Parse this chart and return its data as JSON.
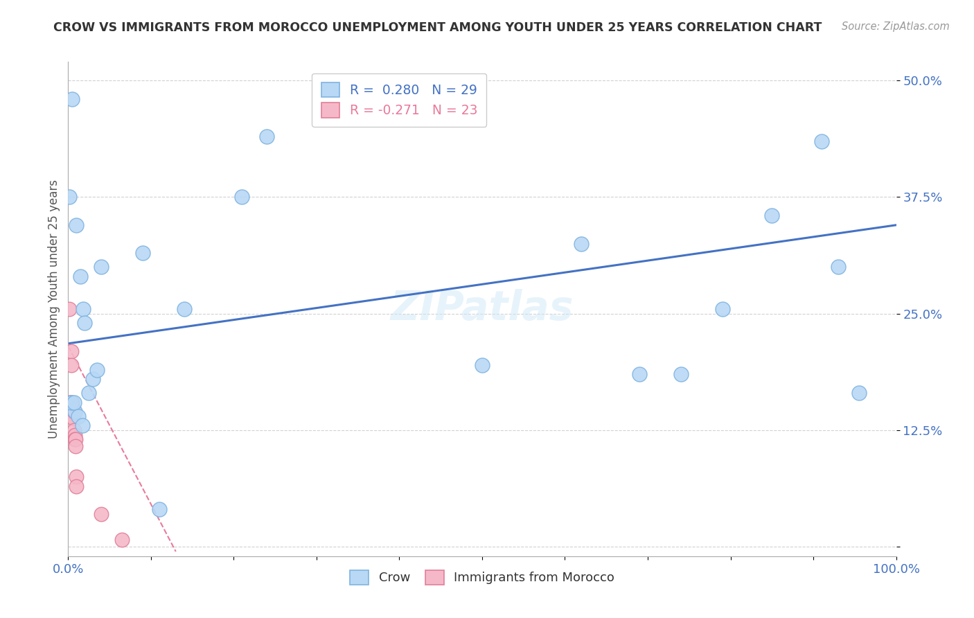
{
  "title": "CROW VS IMMIGRANTS FROM MOROCCO UNEMPLOYMENT AMONG YOUTH UNDER 25 YEARS CORRELATION CHART",
  "source": "Source: ZipAtlas.com",
  "ylabel": "Unemployment Among Youth under 25 years",
  "yticks": [
    0.0,
    0.125,
    0.25,
    0.375,
    0.5
  ],
  "ytick_labels": [
    "",
    "12.5%",
    "25.0%",
    "37.5%",
    "50.0%"
  ],
  "legend_label1": "Crow",
  "legend_label2": "Immigrants from Morocco",
  "legend_r1": "R =  0.280",
  "legend_n1": "N = 29",
  "legend_r2": "R = -0.271",
  "legend_n2": "N = 23",
  "crow_color": "#b8d8f5",
  "crow_edge_color": "#7fb3e0",
  "morocco_color": "#f5b8c8",
  "morocco_edge_color": "#e07f9a",
  "trend_blue": "#4472c4",
  "trend_pink": "#e87a9a",
  "background": "#ffffff",
  "crow_x": [
    0.001,
    0.005,
    0.008,
    0.01,
    0.015,
    0.018,
    0.02,
    0.025,
    0.03,
    0.04,
    0.09,
    0.14,
    0.21,
    0.24,
    0.5,
    0.62,
    0.69,
    0.74,
    0.79,
    0.85,
    0.91,
    0.93,
    0.955,
    0.004,
    0.007,
    0.012,
    0.017,
    0.035,
    0.11
  ],
  "crow_y": [
    0.375,
    0.48,
    0.145,
    0.345,
    0.29,
    0.255,
    0.24,
    0.165,
    0.18,
    0.3,
    0.315,
    0.255,
    0.375,
    0.44,
    0.195,
    0.325,
    0.185,
    0.185,
    0.255,
    0.355,
    0.435,
    0.3,
    0.165,
    0.155,
    0.155,
    0.14,
    0.13,
    0.19,
    0.04
  ],
  "morocco_x": [
    0.001,
    0.001,
    0.002,
    0.002,
    0.003,
    0.003,
    0.003,
    0.004,
    0.004,
    0.005,
    0.005,
    0.006,
    0.006,
    0.007,
    0.007,
    0.008,
    0.008,
    0.009,
    0.009,
    0.01,
    0.01,
    0.04,
    0.065
  ],
  "morocco_y": [
    0.255,
    0.155,
    0.155,
    0.145,
    0.155,
    0.148,
    0.14,
    0.21,
    0.195,
    0.155,
    0.148,
    0.148,
    0.138,
    0.145,
    0.125,
    0.12,
    0.115,
    0.115,
    0.108,
    0.075,
    0.065,
    0.035,
    0.008
  ],
  "xlim": [
    0.0,
    1.0
  ],
  "ylim": [
    -0.01,
    0.52
  ],
  "trend_blue_x0": 0.0,
  "trend_blue_y0": 0.218,
  "trend_blue_x1": 1.0,
  "trend_blue_y1": 0.345,
  "trend_pink_x0": 0.0,
  "trend_pink_y0": 0.215,
  "trend_pink_x1": 0.13,
  "trend_pink_y1": -0.005
}
